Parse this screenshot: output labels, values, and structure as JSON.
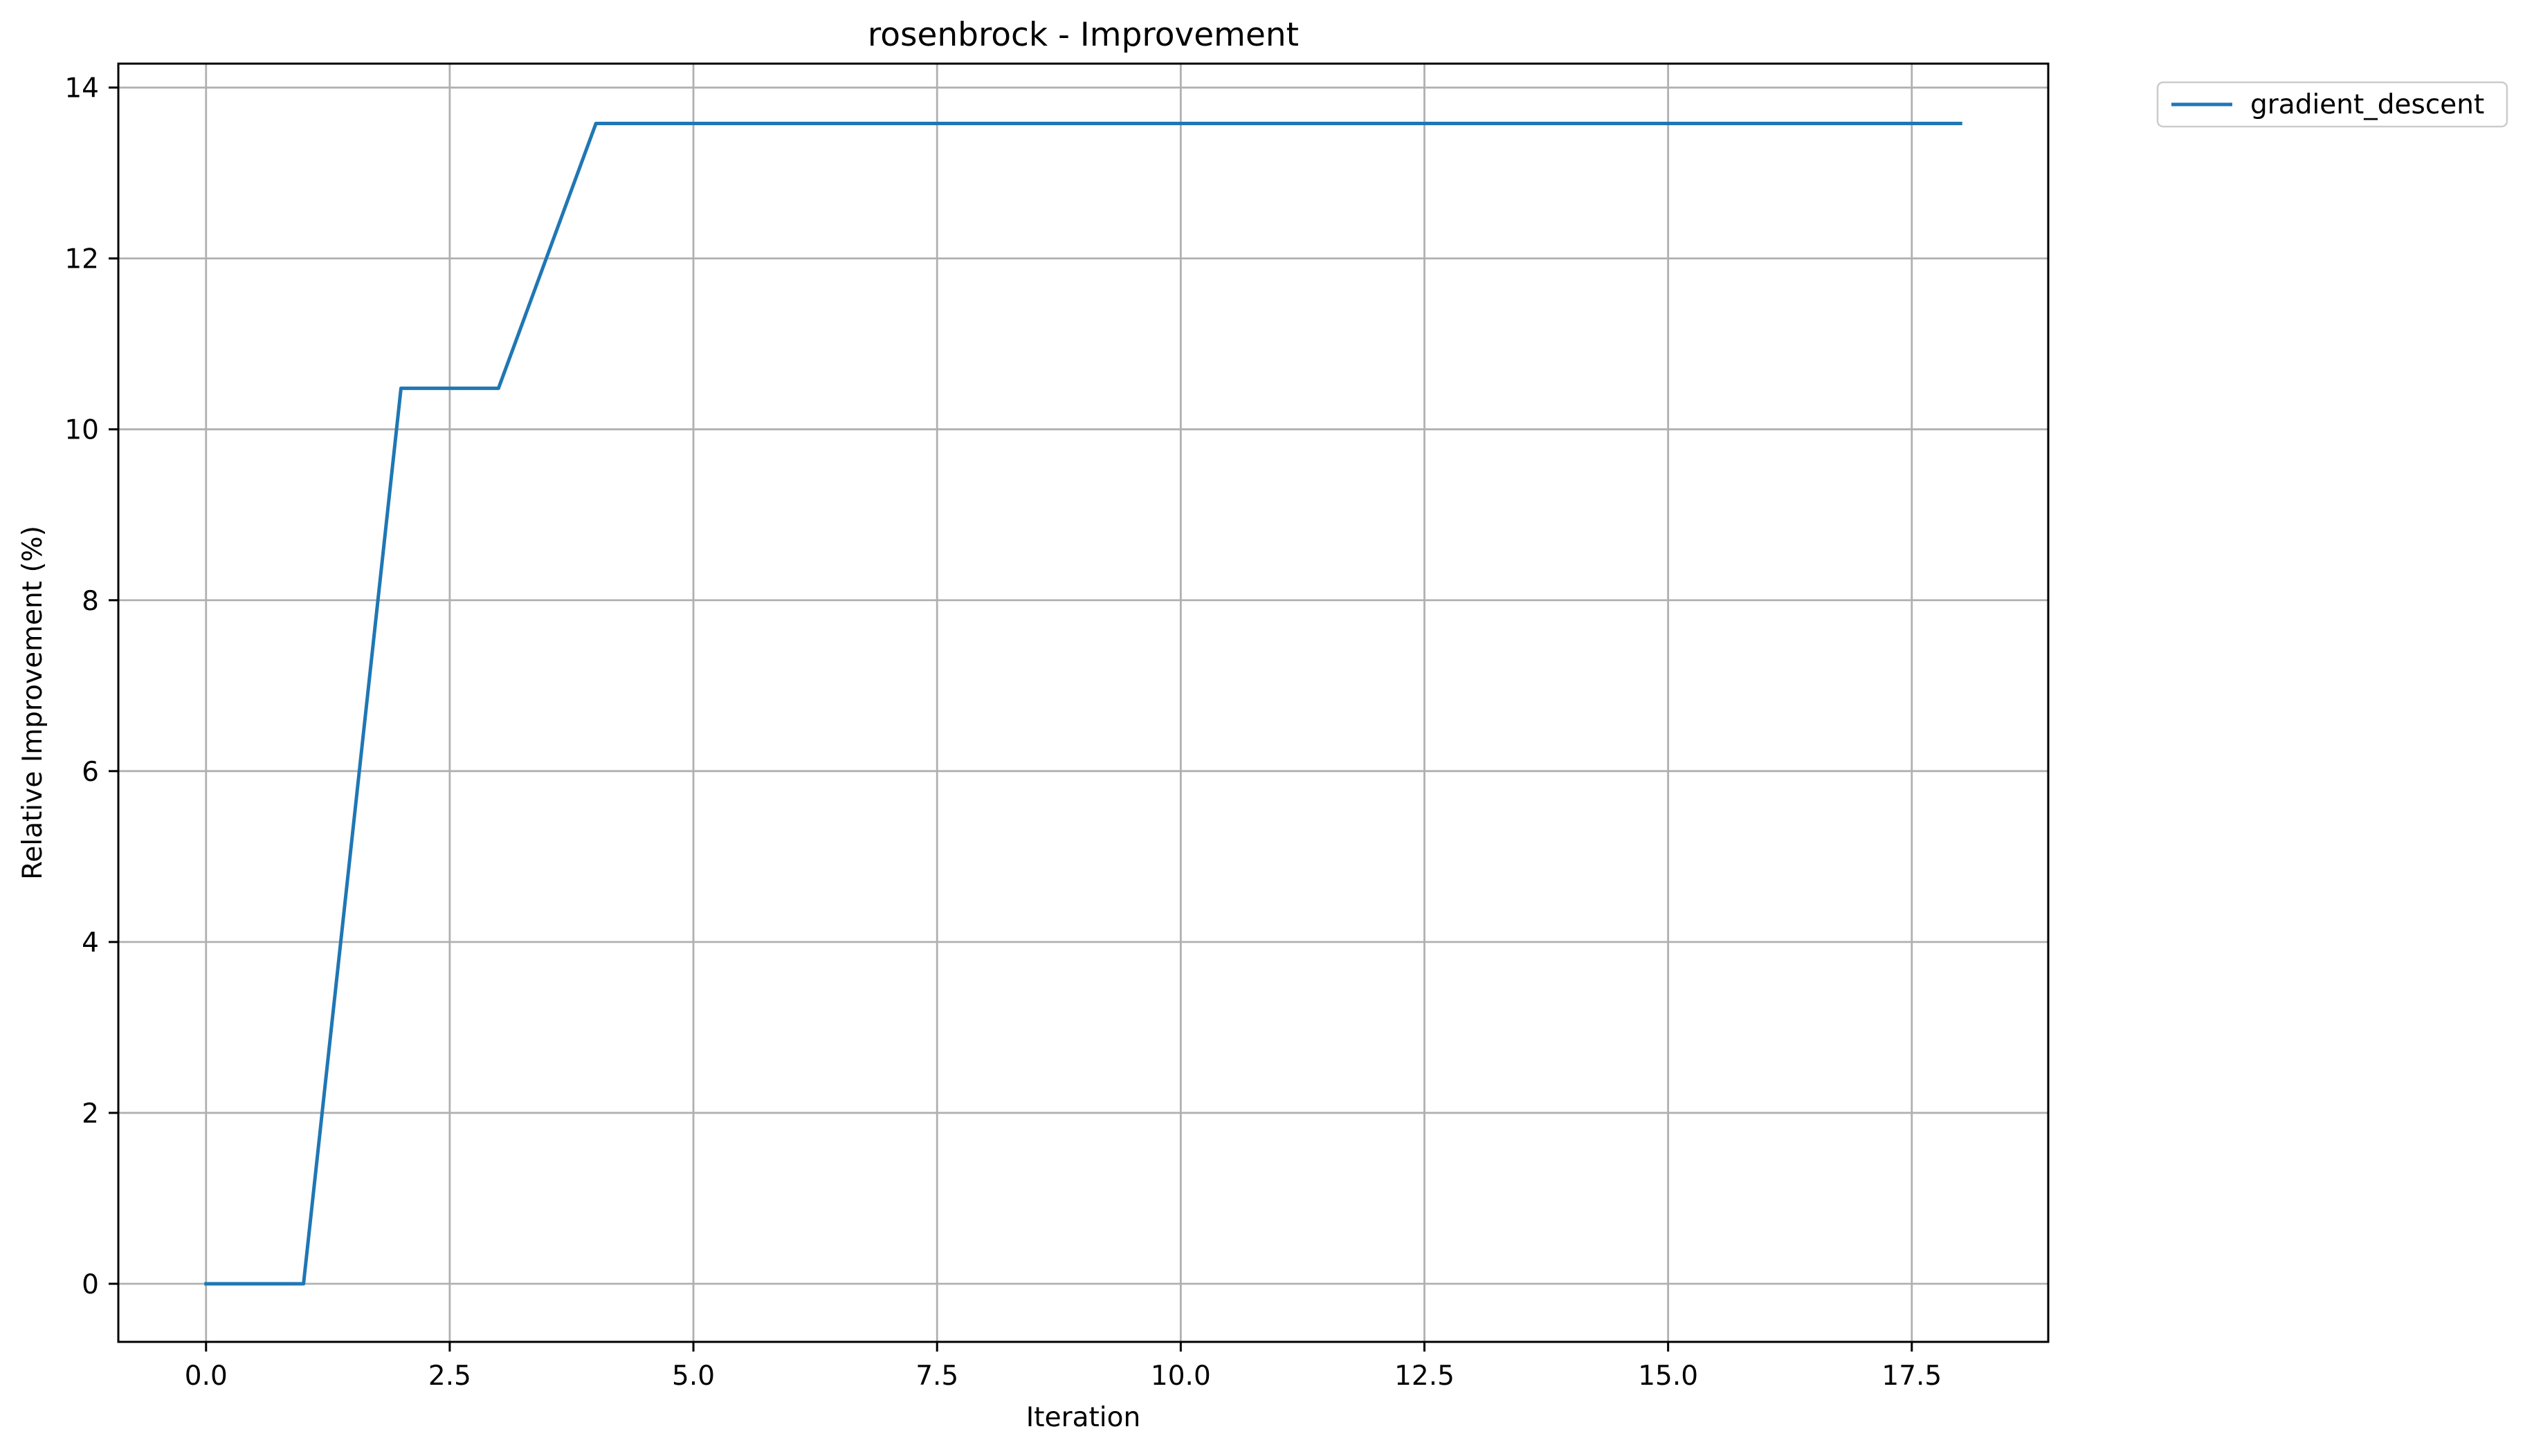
{
  "chart_data": {
    "type": "line",
    "title": "rosenbrock - Improvement",
    "xlabel": "Iteration",
    "ylabel": "Relative Improvement (%)",
    "xlim": [
      -0.9,
      18.9
    ],
    "ylim": [
      -0.68,
      14.28
    ],
    "xticks": [
      0.0,
      2.5,
      5.0,
      7.5,
      10.0,
      12.5,
      15.0,
      17.5
    ],
    "xtick_labels": [
      "0.0",
      "2.5",
      "5.0",
      "7.5",
      "10.0",
      "12.5",
      "15.0",
      "17.5"
    ],
    "yticks": [
      0,
      2,
      4,
      6,
      8,
      10,
      12,
      14
    ],
    "ytick_labels": [
      "0",
      "2",
      "4",
      "6",
      "8",
      "10",
      "12",
      "14"
    ],
    "grid": true,
    "legend_position": "outside-top-right",
    "series": [
      {
        "name": "gradient_descent",
        "color": "#1f77b4",
        "x": [
          0,
          1,
          2,
          3,
          4,
          5,
          6,
          7,
          8,
          9,
          10,
          11,
          12,
          13,
          14,
          15,
          16,
          17,
          18
        ],
        "y": [
          0,
          0,
          10.48,
          10.48,
          13.58,
          13.58,
          13.58,
          13.58,
          13.58,
          13.58,
          13.58,
          13.58,
          13.58,
          13.58,
          13.58,
          13.58,
          13.58,
          13.58,
          13.58
        ]
      }
    ]
  }
}
